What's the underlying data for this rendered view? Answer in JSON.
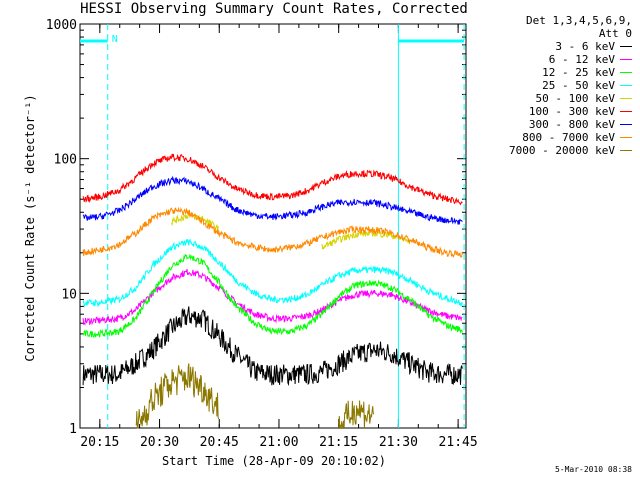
{
  "chart_data": {
    "type": "line",
    "title": "HESSI Observing Summary Count Rates, Corrected",
    "xlabel": "Start Time (28-Apr-09 20:10:02)",
    "ylabel": "Corrected Count Rate (s⁻¹ detector⁻¹)",
    "y_scale": "log",
    "ylim": [
      1,
      1000
    ],
    "y_ticks": [
      {
        "value": 1,
        "label": "1"
      },
      {
        "value": 10,
        "label": "10"
      },
      {
        "value": 100,
        "label": "100"
      },
      {
        "value": 1000,
        "label": "1000"
      }
    ],
    "xlim_minutes": [
      20.167,
      21.783
    ],
    "x_ticks": [
      {
        "label": "20:15",
        "hour": 20.25
      },
      {
        "label": "20:30",
        "hour": 20.5
      },
      {
        "label": "20:45",
        "hour": 20.75
      },
      {
        "label": "21:00",
        "hour": 21.0
      },
      {
        "label": "21:15",
        "hour": 21.25
      },
      {
        "label": "21:30",
        "hour": 21.5
      },
      {
        "label": "21:45",
        "hour": 21.75
      }
    ],
    "x_hours": [
      20.18,
      20.25,
      20.33,
      20.4,
      20.47,
      20.55,
      20.62,
      20.68,
      20.75,
      20.82,
      20.9,
      20.97,
      21.05,
      21.12,
      21.18,
      21.25,
      21.32,
      21.4,
      21.47,
      21.55,
      21.62,
      21.7,
      21.77
    ],
    "series": [
      {
        "name": "3 - 6 keV",
        "color": "#000000",
        "values": [
          2.5,
          2.5,
          2.5,
          3.0,
          3.8,
          5.5,
          6.8,
          6.5,
          4.8,
          3.5,
          2.6,
          2.5,
          2.5,
          2.5,
          2.6,
          3.0,
          3.5,
          3.8,
          3.6,
          3.0,
          2.6,
          2.5,
          2.5
        ]
      },
      {
        "name": "6 - 12 keV",
        "color": "#ff00ff",
        "values": [
          6.2,
          6.3,
          6.5,
          7.5,
          10.0,
          13.0,
          14.5,
          13.5,
          11.0,
          8.5,
          7.0,
          6.5,
          6.5,
          6.8,
          7.5,
          8.8,
          9.8,
          10.0,
          9.8,
          8.5,
          7.5,
          6.8,
          6.5
        ]
      },
      {
        "name": "12 - 25 keV",
        "color": "#00ff00",
        "values": [
          5.0,
          5.0,
          5.2,
          6.5,
          10.0,
          16.0,
          19.0,
          17.0,
          12.0,
          8.0,
          6.0,
          5.2,
          5.2,
          5.8,
          7.0,
          9.5,
          11.5,
          12.0,
          11.0,
          9.0,
          7.0,
          5.8,
          5.3
        ]
      },
      {
        "name": "25 - 50 keV",
        "color": "#00ffff",
        "values": [
          8.5,
          8.5,
          9.0,
          11.0,
          16.0,
          22.0,
          24.0,
          22.0,
          17.0,
          12.5,
          10.0,
          9.0,
          9.0,
          9.8,
          11.5,
          13.5,
          14.8,
          15.0,
          14.5,
          12.5,
          10.5,
          9.2,
          8.5
        ]
      },
      {
        "name": "50 - 100 keV",
        "color": "#d4d400",
        "values": [
          null,
          null,
          null,
          null,
          null,
          34.0,
          38.0,
          36.0,
          30.0,
          null,
          null,
          null,
          null,
          null,
          22.0,
          25.0,
          27.5,
          28.0,
          27.0,
          24.0,
          null,
          null,
          null
        ]
      },
      {
        "name": "100 - 300 keV",
        "color": "#ff0000",
        "values": [
          50.0,
          52.0,
          58.0,
          72.0,
          92.0,
          103.0,
          100.0,
          88.0,
          72.0,
          60.0,
          54.0,
          52.0,
          53.0,
          58.0,
          66.0,
          74.0,
          78.0,
          77.0,
          72.0,
          62.0,
          55.0,
          50.0,
          48.0
        ]
      },
      {
        "name": "300 - 800 keV",
        "color": "#0000ff",
        "values": [
          36.0,
          37.0,
          41.0,
          50.0,
          62.0,
          69.0,
          68.0,
          60.0,
          50.0,
          42.0,
          38.0,
          37.0,
          38.0,
          40.0,
          44.0,
          47.0,
          48.0,
          47.0,
          44.0,
          40.0,
          37.0,
          35.0,
          34.0
        ]
      },
      {
        "name": "800 - 7000 keV",
        "color": "#ff8800",
        "values": [
          20.0,
          21.0,
          23.0,
          28.0,
          36.0,
          41.0,
          40.0,
          34.0,
          28.0,
          24.0,
          22.0,
          21.0,
          22.0,
          23.5,
          26.0,
          28.5,
          30.0,
          29.5,
          28.0,
          25.0,
          22.0,
          20.0,
          19.5
        ]
      },
      {
        "name": "7000 - 20000 keV",
        "color": "#8c7800",
        "values": [
          null,
          null,
          null,
          1.0,
          1.6,
          2.2,
          2.4,
          2.0,
          1.4,
          null,
          null,
          null,
          null,
          null,
          null,
          1.0,
          1.4,
          1.2,
          null,
          null,
          null,
          null,
          null
        ]
      }
    ]
  },
  "legend": {
    "header_line1": "Det 1,3,4,5,6,9,",
    "header_line2": "Att 0"
  },
  "annotations": {
    "n_marker": "N",
    "attenuator_color": "#00ffff",
    "night_intervals_hours": [
      [
        20.167,
        20.283
      ],
      [
        21.5,
        21.775
      ]
    ],
    "dashed_lines_hours": [
      20.283,
      21.775
    ],
    "solid_lines_hours": [
      21.5
    ]
  },
  "footer": "5-Mar-2010 08:38"
}
